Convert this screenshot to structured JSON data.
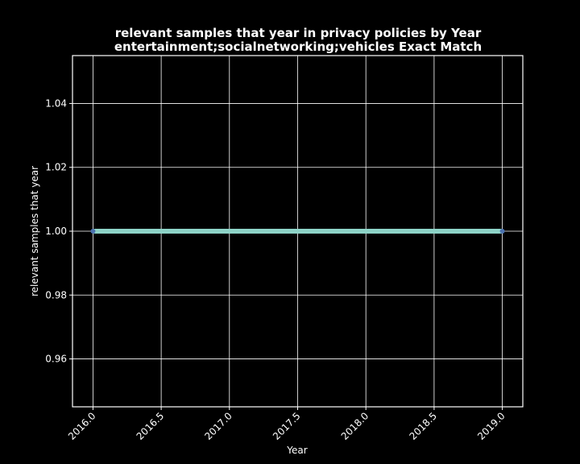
{
  "chart_data": {
    "type": "line",
    "title": "relevant samples that year in privacy policies by Year",
    "subtitle": "entertainment;socialnetworking;vehicles Exact Match",
    "xlabel": "Year",
    "ylabel": "relevant samples that year",
    "xlim": [
      2015.85,
      2019.15
    ],
    "ylim": [
      0.945,
      1.055
    ],
    "x_ticks": [
      "2016.0",
      "2016.5",
      "2017.0",
      "2017.5",
      "2018.0",
      "2018.5",
      "2019.0"
    ],
    "y_ticks": [
      "0.96",
      "0.98",
      "1.00",
      "1.02",
      "1.04"
    ],
    "grid": true,
    "series": [
      {
        "x": [
          2016,
          2019
        ],
        "values": [
          1.0,
          1.0
        ],
        "line_color": "#8dd3c7",
        "marker_color": "#4c72b0"
      }
    ],
    "colors": {
      "background": "#000000",
      "foreground": "#ffffff"
    }
  }
}
